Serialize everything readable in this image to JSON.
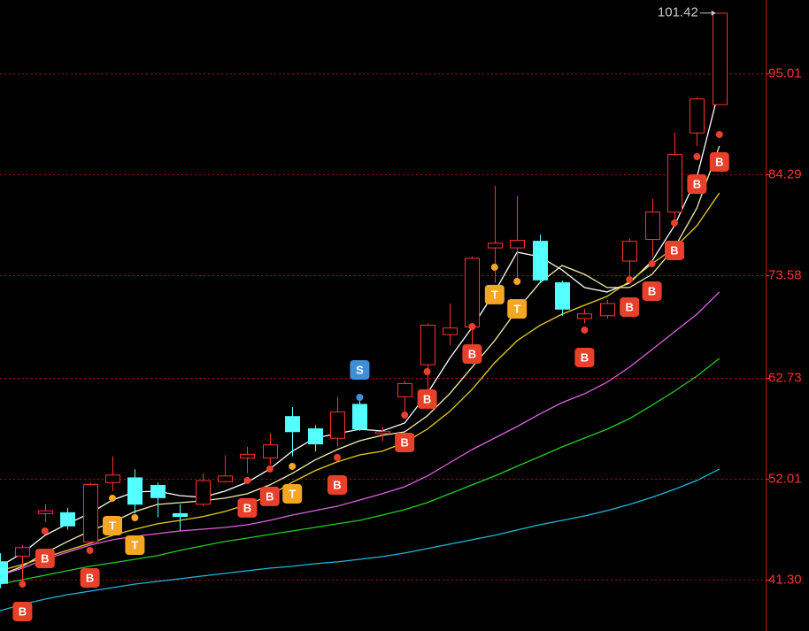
{
  "chart_data": {
    "type": "candlestick",
    "ylim": [
      35.85,
      102.8
    ],
    "yticks": [
      {
        "value": 41.3,
        "label": "41.30"
      },
      52.01,
      62.73,
      73.58,
      84.29,
      95.01
    ],
    "grid": true,
    "up_color": "#ff3030",
    "down_color": "#54ffff",
    "candles": [
      {
        "open": 43.2,
        "high": 44.1,
        "low": 40.4,
        "close": 40.9
      },
      {
        "open": 43.8,
        "high": 45.0,
        "low": 40.9,
        "close": 44.7
      },
      {
        "open": 48.3,
        "high": 49.3,
        "low": 47.4,
        "close": 48.6
      },
      {
        "open": 48.4,
        "high": 48.9,
        "low": 46.6,
        "close": 47.0
      },
      {
        "open": 45.3,
        "high": 51.6,
        "low": 45.0,
        "close": 51.4
      },
      {
        "open": 51.6,
        "high": 54.4,
        "low": 50.7,
        "close": 52.4
      },
      {
        "open": 52.1,
        "high": 53.0,
        "low": 48.3,
        "close": 49.3
      },
      {
        "open": 51.3,
        "high": 51.6,
        "low": 47.9,
        "close": 50.0
      },
      {
        "open": 48.3,
        "high": 49.3,
        "low": 46.5,
        "close": 48.0
      },
      {
        "open": 49.3,
        "high": 52.6,
        "low": 49.1,
        "close": 51.8
      },
      {
        "open": 51.7,
        "high": 54.5,
        "low": 51.6,
        "close": 52.3
      },
      {
        "open": 54.2,
        "high": 55.4,
        "low": 52.6,
        "close": 54.6
      },
      {
        "open": 54.2,
        "high": 56.8,
        "low": 53.5,
        "close": 55.6
      },
      {
        "open": 58.6,
        "high": 59.6,
        "low": 54.4,
        "close": 57.0
      },
      {
        "open": 57.3,
        "high": 57.7,
        "low": 54.9,
        "close": 55.7
      },
      {
        "open": 56.3,
        "high": 60.7,
        "low": 55.4,
        "close": 59.1
      },
      {
        "open": 59.9,
        "high": 60.6,
        "low": 57.1,
        "close": 57.3
      },
      {
        "open": 56.8,
        "high": 57.5,
        "low": 56.0,
        "close": 57.0
      },
      {
        "open": 60.7,
        "high": 62.4,
        "low": 58.7,
        "close": 62.1
      },
      {
        "open": 64.1,
        "high": 68.5,
        "low": 61.5,
        "close": 68.3
      },
      {
        "open": 67.3,
        "high": 70.6,
        "low": 66.2,
        "close": 68.0
      },
      {
        "open": 68.1,
        "high": 75.6,
        "low": 65.2,
        "close": 75.4
      },
      {
        "open": 76.5,
        "high": 83.1,
        "low": 72.8,
        "close": 77.0
      },
      {
        "open": 76.5,
        "high": 82.0,
        "low": 73.2,
        "close": 77.3
      },
      {
        "open": 77.2,
        "high": 77.9,
        "low": 72.8,
        "close": 73.1
      },
      {
        "open": 72.8,
        "high": 73.0,
        "low": 69.3,
        "close": 70.0
      },
      {
        "open": 69.0,
        "high": 70.0,
        "low": 68.5,
        "close": 69.5
      },
      {
        "open": 69.3,
        "high": 71.0,
        "low": 69.0,
        "close": 70.6
      },
      {
        "open": 75.1,
        "high": 77.5,
        "low": 72.8,
        "close": 77.2
      },
      {
        "open": 77.4,
        "high": 81.7,
        "low": 75.6,
        "close": 80.3
      },
      {
        "open": 80.3,
        "high": 88.7,
        "low": 78.9,
        "close": 86.4
      },
      {
        "open": 88.7,
        "high": 92.5,
        "low": 87.3,
        "close": 92.3
      },
      {
        "open": 91.7,
        "high": 101.42,
        "low": 91.7,
        "close": 101.4
      }
    ],
    "max_label": {
      "value": 101.42,
      "label": "101.42"
    },
    "series": [
      {
        "color": "#ffffff",
        "values": [
          42.71,
          44.12,
          46.0,
          47.22,
          48.34,
          49.75,
          50.6,
          50.69,
          50.22,
          50.03,
          50.69,
          51.63,
          53.04,
          54.92,
          56.32,
          56.79,
          57.26,
          57.07,
          57.92,
          61.02,
          64.77,
          68.06,
          71.82,
          76.04,
          75.57,
          74.16,
          72.29,
          71.82,
          72.76,
          75.1,
          78.86,
          84.02,
          93.41
        ]
      },
      {
        "color": "#f5f0b0",
        "values": [
          41.77,
          42.71,
          44.12,
          45.34,
          46.46,
          47.4,
          48.53,
          49.28,
          49.47,
          49.66,
          49.94,
          50.41,
          51.35,
          52.57,
          53.98,
          55.1,
          56.04,
          56.61,
          56.98,
          58.67,
          61.02,
          63.84,
          66.65,
          69.94,
          72.76,
          74.63,
          73.69,
          72.29,
          72.29,
          73.69,
          76.51,
          80.74,
          87.31
        ]
      },
      {
        "color": "#e8d020",
        "values": [
          42.24,
          42.9,
          43.65,
          44.4,
          45.15,
          45.99,
          46.65,
          47.22,
          47.59,
          47.97,
          48.53,
          49.28,
          50.22,
          51.63,
          52.85,
          53.79,
          54.54,
          54.92,
          55.85,
          57.26,
          59.14,
          61.49,
          64.3,
          66.65,
          68.25,
          69.47,
          70.41,
          71.35,
          72.94,
          74.82,
          76.51,
          78.86,
          82.33
        ]
      },
      {
        "color": "#e060e0",
        "values": [
          41.77,
          42.52,
          43.46,
          44.21,
          44.96,
          45.53,
          45.9,
          46.18,
          46.46,
          46.65,
          46.84,
          47.12,
          47.59,
          48.15,
          48.62,
          49.09,
          49.75,
          50.41,
          51.16,
          52.29,
          53.69,
          55.1,
          56.32,
          57.54,
          58.86,
          60.08,
          61.02,
          62.24,
          63.84,
          65.71,
          67.59,
          69.47,
          71.82
        ]
      },
      {
        "color": "#20d020",
        "values": [
          40.83,
          41.3,
          41.77,
          42.24,
          42.71,
          43.08,
          43.46,
          43.84,
          44.4,
          44.87,
          45.34,
          45.71,
          46.09,
          46.46,
          46.84,
          47.22,
          47.59,
          48.15,
          48.72,
          49.47,
          50.41,
          51.35,
          52.29,
          53.32,
          54.35,
          55.38,
          56.32,
          57.26,
          58.39,
          59.8,
          61.3,
          62.9,
          64.77
        ]
      },
      {
        "color": "#20b8d8",
        "values": [
          38.01,
          38.67,
          39.23,
          39.7,
          40.08,
          40.45,
          40.83,
          41.11,
          41.39,
          41.68,
          41.96,
          42.24,
          42.52,
          42.71,
          42.99,
          43.18,
          43.46,
          43.74,
          44.12,
          44.59,
          45.06,
          45.53,
          46.0,
          46.56,
          47.12,
          47.59,
          48.06,
          48.62,
          49.28,
          50.03,
          50.88,
          51.82,
          53.04
        ]
      }
    ],
    "signals": [
      {
        "index": 1,
        "label": "B",
        "price": 40.83
      },
      {
        "index": 2,
        "label": "B",
        "price": 46.46
      },
      {
        "index": 4,
        "label": "B",
        "price": 44.4
      },
      {
        "index": 5,
        "label": "T",
        "price": 49.94
      },
      {
        "index": 6,
        "label": "T",
        "price": 47.87
      },
      {
        "index": 11,
        "label": "B",
        "price": 51.82
      },
      {
        "index": 12,
        "label": "B",
        "price": 53.04
      },
      {
        "index": 13,
        "label": "T",
        "price": 53.32
      },
      {
        "index": 15,
        "label": "B",
        "price": 54.26
      },
      {
        "index": 16,
        "label": "S",
        "price": 60.64
      },
      {
        "index": 18,
        "label": "B",
        "price": 58.76
      },
      {
        "index": 19,
        "label": "B",
        "price": 63.37
      },
      {
        "index": 21,
        "label": "B",
        "price": 68.15
      },
      {
        "index": 22,
        "label": "T",
        "price": 74.45
      },
      {
        "index": 23,
        "label": "T",
        "price": 72.94
      },
      {
        "index": 26,
        "label": "B",
        "price": 67.78
      },
      {
        "index": 28,
        "label": "B",
        "price": 73.13
      },
      {
        "index": 29,
        "label": "B",
        "price": 74.82
      },
      {
        "index": 30,
        "label": "B",
        "price": 79.14
      },
      {
        "index": 31,
        "label": "B",
        "price": 86.18
      },
      {
        "index": 32,
        "label": "B",
        "price": 88.53
      }
    ],
    "signal_colors": {
      "B": "#e8402a",
      "T": "#f5a623",
      "S": "#3f8fd8"
    }
  }
}
